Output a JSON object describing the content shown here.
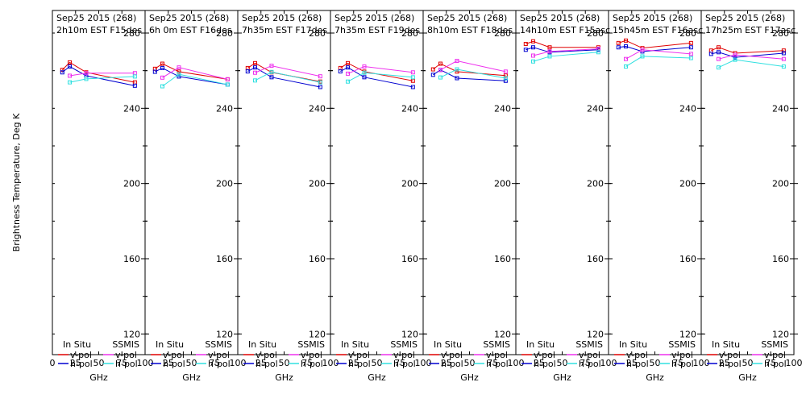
{
  "chart_data": [
    {
      "type": "line",
      "title_line1": "Sep25 2015 (268)",
      "title_line2": "2h10m EST F15des",
      "x": [
        10.7,
        18.7,
        36.5,
        89.0
      ],
      "series": [
        {
          "name": "In Situ v-pol",
          "color": "#e00000",
          "x": [
            10.7,
            18.7,
            36.5,
            89.0
          ],
          "values": [
            260.4,
            264.4,
            259.1,
            253.8
          ]
        },
        {
          "name": "In Situ h-pol",
          "color": "#0000d0",
          "x": [
            10.7,
            18.7,
            36.5,
            89.0
          ],
          "values": [
            259.1,
            262.2,
            257.3,
            252.0
          ]
        },
        {
          "name": "SSMIS v-pol",
          "color": "#ee30ee",
          "x": [
            18.7,
            36.5,
            89.0
          ],
          "values": [
            257.3,
            258.7,
            258.7
          ]
        },
        {
          "name": "SSMIS h-pol",
          "color": "#30e0e0",
          "x": [
            18.7,
            36.5,
            89.0
          ],
          "values": [
            253.8,
            255.6,
            256.9
          ]
        }
      ]
    },
    {
      "type": "line",
      "title_line1": "Sep25 2015 (268)",
      "title_line2": "6h 0m EST F16des",
      "series": [
        {
          "name": "In Situ v-pol",
          "color": "#e00000",
          "x": [
            10.7,
            18.7,
            36.5,
            89.0
          ],
          "values": [
            261.0,
            263.7,
            259.5,
            255.4
          ]
        },
        {
          "name": "In Situ h-pol",
          "color": "#0000d0",
          "x": [
            10.7,
            18.7,
            36.5,
            89.0
          ],
          "values": [
            259.4,
            261.4,
            256.9,
            252.6
          ]
        },
        {
          "name": "SSMIS v-pol",
          "color": "#ee30ee",
          "x": [
            18.7,
            36.5,
            89.0
          ],
          "values": [
            256.3,
            261.7,
            255.4
          ]
        },
        {
          "name": "SSMIS h-pol",
          "color": "#30e0e0",
          "x": [
            18.7,
            36.5,
            89.0
          ],
          "values": [
            251.7,
            258.1,
            252.6
          ]
        }
      ]
    },
    {
      "type": "line",
      "title_line1": "Sep25 2015 (268)",
      "title_line2": "7h35m EST F17des",
      "series": [
        {
          "name": "In Situ v-pol",
          "color": "#e00000",
          "x": [
            10.7,
            18.7,
            36.5,
            89.0
          ],
          "values": [
            261.4,
            264.0,
            259.1,
            254.2
          ]
        },
        {
          "name": "In Situ h-pol",
          "color": "#0000d0",
          "x": [
            10.7,
            18.7,
            36.5,
            89.0
          ],
          "values": [
            259.6,
            261.7,
            256.5,
            251.3
          ]
        },
        {
          "name": "SSMIS v-pol",
          "color": "#ee30ee",
          "x": [
            18.7,
            36.5,
            89.0
          ],
          "values": [
            258.9,
            262.6,
            257.0
          ]
        },
        {
          "name": "SSMIS h-pol",
          "color": "#30e0e0",
          "x": [
            18.7,
            36.5,
            89.0
          ],
          "values": [
            254.8,
            259.3,
            253.8
          ]
        }
      ]
    },
    {
      "type": "line",
      "title_line1": "Sep25 2015 (268)",
      "title_line2": "7h35m EST F19des",
      "series": [
        {
          "name": "In Situ v-pol",
          "color": "#e00000",
          "x": [
            10.7,
            18.7,
            36.5,
            89.0
          ],
          "values": [
            261.4,
            264.0,
            259.5,
            254.6
          ]
        },
        {
          "name": "In Situ h-pol",
          "color": "#0000d0",
          "x": [
            10.7,
            18.7,
            36.5,
            89.0
          ],
          "values": [
            259.6,
            261.7,
            256.5,
            251.3
          ]
        },
        {
          "name": "SSMIS v-pol",
          "color": "#ee30ee",
          "x": [
            18.7,
            36.5,
            89.0
          ],
          "values": [
            258.4,
            262.2,
            259.1
          ]
        },
        {
          "name": "SSMIS h-pol",
          "color": "#30e0e0",
          "x": [
            18.7,
            36.5,
            89.0
          ],
          "values": [
            254.2,
            258.9,
            256.5
          ]
        }
      ]
    },
    {
      "type": "line",
      "title_line1": "Sep25 2015 (268)",
      "title_line2": "8h10m EST F18des",
      "series": [
        {
          "name": "In Situ v-pol",
          "color": "#e00000",
          "x": [
            10.7,
            18.7,
            36.5,
            89.0
          ],
          "values": [
            260.7,
            263.7,
            259.5,
            257.4
          ]
        },
        {
          "name": "In Situ h-pol",
          "color": "#0000d0",
          "x": [
            10.7,
            18.7,
            36.5,
            89.0
          ],
          "values": [
            257.8,
            260.4,
            256.0,
            254.6
          ]
        },
        {
          "name": "SSMIS v-pol",
          "color": "#ee30ee",
          "x": [
            18.7,
            36.5,
            89.0
          ],
          "values": [
            260.4,
            265.2,
            259.5
          ]
        },
        {
          "name": "SSMIS h-pol",
          "color": "#30e0e0",
          "x": [
            18.7,
            36.5,
            89.0
          ],
          "values": [
            256.4,
            260.7,
            256.0
          ]
        }
      ]
    },
    {
      "type": "line",
      "title_line1": "Sep25 2015 (268)",
      "title_line2": "14h10m EST F15asc",
      "series": [
        {
          "name": "In Situ v-pol",
          "color": "#e00000",
          "x": [
            10.7,
            18.7,
            36.5,
            89.0
          ],
          "values": [
            274.2,
            275.6,
            272.4,
            272.4
          ]
        },
        {
          "name": "In Situ h-pol",
          "color": "#0000d0",
          "x": [
            10.7,
            18.7,
            36.5,
            89.0
          ],
          "values": [
            271.1,
            272.4,
            269.8,
            271.1
          ]
        },
        {
          "name": "SSMIS v-pol",
          "color": "#ee30ee",
          "x": [
            18.7,
            36.5,
            89.0
          ],
          "values": [
            268.0,
            270.2,
            271.6
          ]
        },
        {
          "name": "SSMIS h-pol",
          "color": "#30e0e0",
          "x": [
            18.7,
            36.5,
            89.0
          ],
          "values": [
            264.9,
            267.6,
            269.8
          ]
        }
      ]
    },
    {
      "type": "line",
      "title_line1": "Sep25 2015 (268)",
      "title_line2": "15h45m EST F16asc",
      "series": [
        {
          "name": "In Situ v-pol",
          "color": "#e00000",
          "x": [
            10.7,
            18.7,
            36.5,
            89.0
          ],
          "values": [
            274.7,
            276.0,
            272.0,
            274.7
          ]
        },
        {
          "name": "In Situ h-pol",
          "color": "#0000d0",
          "x": [
            10.7,
            18.7,
            36.5,
            89.0
          ],
          "values": [
            272.4,
            272.9,
            270.2,
            272.4
          ]
        },
        {
          "name": "SSMIS v-pol",
          "color": "#ee30ee",
          "x": [
            18.7,
            36.5,
            89.0
          ],
          "values": [
            266.2,
            271.1,
            268.9
          ]
        },
        {
          "name": "SSMIS h-pol",
          "color": "#30e0e0",
          "x": [
            18.7,
            36.5,
            89.0
          ],
          "values": [
            262.2,
            267.6,
            266.7
          ]
        }
      ]
    },
    {
      "type": "line",
      "title_line1": "Sep25 2015 (268)",
      "title_line2": "17h25m EST F17asc",
      "series": [
        {
          "name": "In Situ v-pol",
          "color": "#e00000",
          "x": [
            10.7,
            18.7,
            36.5,
            89.0
          ],
          "values": [
            270.7,
            272.4,
            269.3,
            270.7
          ]
        },
        {
          "name": "In Situ h-pol",
          "color": "#0000d0",
          "x": [
            10.7,
            18.7,
            36.5,
            89.0
          ],
          "values": [
            268.9,
            269.8,
            267.1,
            269.3
          ]
        },
        {
          "name": "SSMIS v-pol",
          "color": "#ee30ee",
          "x": [
            18.7,
            36.5,
            89.0
          ],
          "values": [
            266.2,
            268.4,
            266.2
          ]
        },
        {
          "name": "SSMIS h-pol",
          "color": "#30e0e0",
          "x": [
            18.7,
            36.5,
            89.0
          ],
          "values": [
            261.7,
            265.8,
            262.2
          ]
        }
      ]
    }
  ],
  "axes": {
    "ylabel": "Brightness Temperature, Deg K",
    "xlabel": "GHz",
    "ylim": [
      109,
      292
    ],
    "xlim": [
      0,
      100
    ],
    "yticks": [
      120,
      160,
      200,
      240,
      280
    ],
    "xticks": [
      0,
      25,
      50,
      75,
      100
    ],
    "first_xtick_labels": [
      "0",
      "25",
      "50",
      "75",
      "100"
    ],
    "other_xtick_labels": [
      "25",
      "50",
      "75",
      "100"
    ]
  },
  "legend": {
    "insitu_header": "In Situ",
    "ssmis_header": "SSMIS",
    "vpol": "v-pol",
    "hpol": "h-pol",
    "colors": {
      "insitu_v": "#e00000",
      "insitu_h": "#0000d0",
      "ssmis_v": "#ee30ee",
      "ssmis_h": "#30e0e0"
    }
  }
}
